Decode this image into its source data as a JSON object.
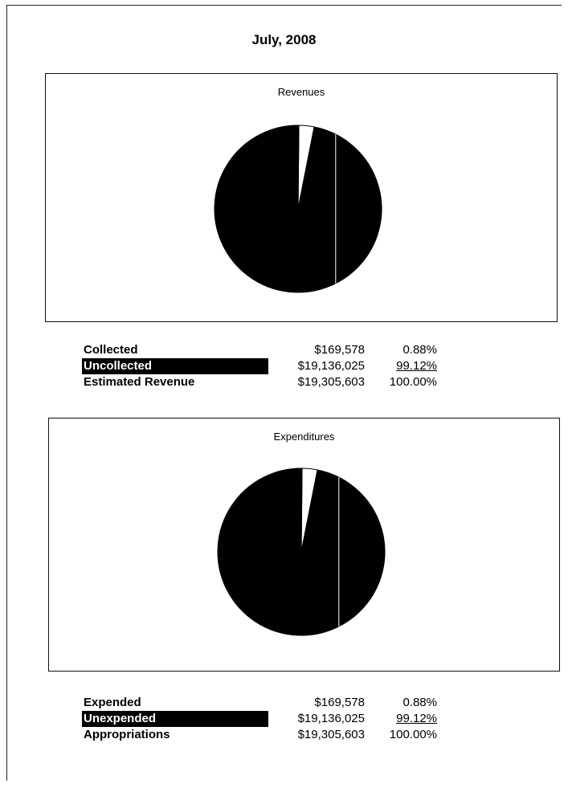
{
  "title": "July, 2008",
  "chart_data": [
    {
      "type": "pie",
      "title": "Revenues",
      "slices": [
        {
          "label": "Collected",
          "value": 169578,
          "percent": 0.88,
          "color": "#ffffff"
        },
        {
          "label": "Uncollected",
          "value": 19136025,
          "percent": 99.12,
          "color": "#000000"
        }
      ]
    },
    {
      "type": "pie",
      "title": "Expenditures",
      "slices": [
        {
          "label": "Expended",
          "value": 169578,
          "percent": 0.88,
          "color": "#ffffff"
        },
        {
          "label": "Unexpended",
          "value": 19136025,
          "percent": 99.12,
          "color": "#000000"
        }
      ]
    }
  ],
  "revenue_table": {
    "rows": [
      {
        "label": "Collected",
        "amount": "$169,578",
        "percent": "0.88%"
      },
      {
        "label": "Uncollected",
        "amount": "$19,136,025",
        "percent": "99.12%"
      },
      {
        "label": "Estimated Revenue",
        "amount": "$19,305,603",
        "percent": "100.00%"
      }
    ]
  },
  "expenditure_table": {
    "rows": [
      {
        "label": "Expended",
        "amount": "$169,578",
        "percent": "0.88%"
      },
      {
        "label": "Unexpended",
        "amount": "$19,136,025",
        "percent": "99.12%"
      },
      {
        "label": "Appropriations",
        "amount": "$19,305,603",
        "percent": "100.00%"
      }
    ]
  }
}
